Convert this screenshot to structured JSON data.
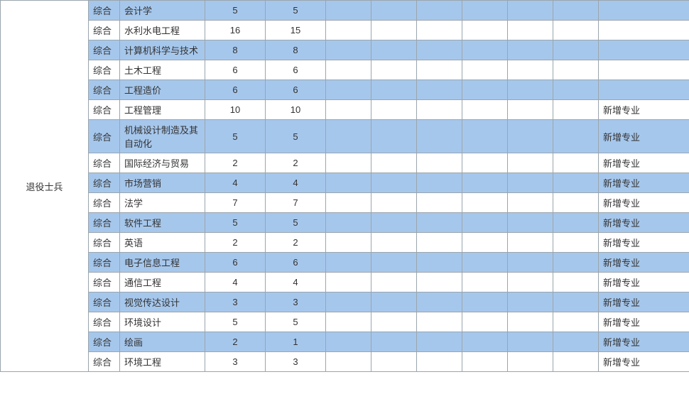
{
  "table": {
    "row_header": "退役士兵",
    "columns": [
      "category",
      "major",
      "num1",
      "num2",
      "b1",
      "b2",
      "b3",
      "b4",
      "b5",
      "b6",
      "note"
    ],
    "col_widths": {
      "rowhead": 124,
      "cat": 44,
      "major": 120,
      "num1": 85,
      "num2": 85,
      "blank": 64,
      "note": 128
    },
    "stripe_colors": {
      "odd": "#a6c7ec",
      "even": "#ffffff"
    },
    "border_color": "#9aa5ad",
    "fontsize": 13,
    "rows": [
      {
        "category": "综合",
        "major": "会计学",
        "num1": "5",
        "num2": "5",
        "b1": "",
        "b2": "",
        "b3": "",
        "b4": "",
        "b5": "",
        "b6": "",
        "note": ""
      },
      {
        "category": "综合",
        "major": "水利水电工程",
        "num1": "16",
        "num2": "15",
        "b1": "",
        "b2": "",
        "b3": "",
        "b4": "",
        "b5": "",
        "b6": "",
        "note": ""
      },
      {
        "category": "综合",
        "major": "计算机科学与技术",
        "num1": "8",
        "num2": "8",
        "b1": "",
        "b2": "",
        "b3": "",
        "b4": "",
        "b5": "",
        "b6": "",
        "note": ""
      },
      {
        "category": "综合",
        "major": "土木工程",
        "num1": "6",
        "num2": "6",
        "b1": "",
        "b2": "",
        "b3": "",
        "b4": "",
        "b5": "",
        "b6": "",
        "note": ""
      },
      {
        "category": "综合",
        "major": "工程造价",
        "num1": "6",
        "num2": "6",
        "b1": "",
        "b2": "",
        "b3": "",
        "b4": "",
        "b5": "",
        "b6": "",
        "note": ""
      },
      {
        "category": "综合",
        "major": "工程管理",
        "num1": "10",
        "num2": "10",
        "b1": "",
        "b2": "",
        "b3": "",
        "b4": "",
        "b5": "",
        "b6": "",
        "note": "新增专业"
      },
      {
        "category": "综合",
        "major": "机械设计制造及其自动化",
        "num1": "5",
        "num2": "5",
        "b1": "",
        "b2": "",
        "b3": "",
        "b4": "",
        "b5": "",
        "b6": "",
        "note": "新增专业"
      },
      {
        "category": "综合",
        "major": "国际经济与贸易",
        "num1": "2",
        "num2": "2",
        "b1": "",
        "b2": "",
        "b3": "",
        "b4": "",
        "b5": "",
        "b6": "",
        "note": "新增专业"
      },
      {
        "category": "综合",
        "major": "市场营销",
        "num1": "4",
        "num2": "4",
        "b1": "",
        "b2": "",
        "b3": "",
        "b4": "",
        "b5": "",
        "b6": "",
        "note": "新增专业"
      },
      {
        "category": "综合",
        "major": "法学",
        "num1": "7",
        "num2": "7",
        "b1": "",
        "b2": "",
        "b3": "",
        "b4": "",
        "b5": "",
        "b6": "",
        "note": "新增专业"
      },
      {
        "category": "综合",
        "major": "软件工程",
        "num1": "5",
        "num2": "5",
        "b1": "",
        "b2": "",
        "b3": "",
        "b4": "",
        "b5": "",
        "b6": "",
        "note": "新增专业"
      },
      {
        "category": "综合",
        "major": "英语",
        "num1": "2",
        "num2": "2",
        "b1": "",
        "b2": "",
        "b3": "",
        "b4": "",
        "b5": "",
        "b6": "",
        "note": "新增专业"
      },
      {
        "category": "综合",
        "major": "电子信息工程",
        "num1": "6",
        "num2": "6",
        "b1": "",
        "b2": "",
        "b3": "",
        "b4": "",
        "b5": "",
        "b6": "",
        "note": "新增专业"
      },
      {
        "category": "综合",
        "major": "通信工程",
        "num1": "4",
        "num2": "4",
        "b1": "",
        "b2": "",
        "b3": "",
        "b4": "",
        "b5": "",
        "b6": "",
        "note": "新增专业"
      },
      {
        "category": "综合",
        "major": "视觉传达设计",
        "num1": "3",
        "num2": "3",
        "b1": "",
        "b2": "",
        "b3": "",
        "b4": "",
        "b5": "",
        "b6": "",
        "note": "新增专业"
      },
      {
        "category": "综合",
        "major": "环境设计",
        "num1": "5",
        "num2": "5",
        "b1": "",
        "b2": "",
        "b3": "",
        "b4": "",
        "b5": "",
        "b6": "",
        "note": "新增专业"
      },
      {
        "category": "综合",
        "major": "绘画",
        "num1": "2",
        "num2": "1",
        "b1": "",
        "b2": "",
        "b3": "",
        "b4": "",
        "b5": "",
        "b6": "",
        "note": "新增专业"
      },
      {
        "category": "综合",
        "major": "环境工程",
        "num1": "3",
        "num2": "3",
        "b1": "",
        "b2": "",
        "b3": "",
        "b4": "",
        "b5": "",
        "b6": "",
        "note": "新增专业"
      }
    ]
  }
}
